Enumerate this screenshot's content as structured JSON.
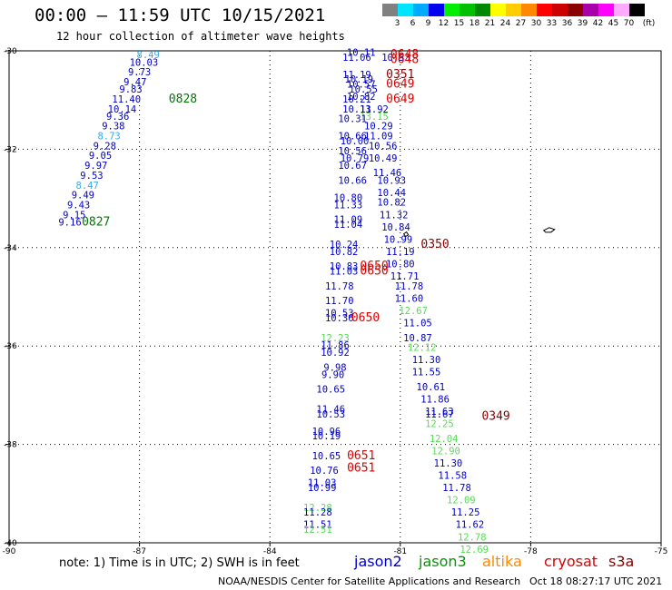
{
  "header": {
    "title": "00:00 – 11:59 UTC 10/15/2021",
    "subtitle": "12 hour collection of altimeter wave heights"
  },
  "colorbar": {
    "unit": "(ft)",
    "bins": [
      {
        "label": "3",
        "color": "#808080"
      },
      {
        "label": "6",
        "color": "#00e5ff"
      },
      {
        "label": "9",
        "color": "#00aaff"
      },
      {
        "label": "12",
        "color": "#0000ee"
      },
      {
        "label": "15",
        "color": "#00ee00"
      },
      {
        "label": "18",
        "color": "#00c000"
      },
      {
        "label": "21",
        "color": "#008800"
      },
      {
        "label": "24",
        "color": "#ffff00"
      },
      {
        "label": "27",
        "color": "#ffcc00"
      },
      {
        "label": "30",
        "color": "#ff8800"
      },
      {
        "label": "33",
        "color": "#ff0000"
      },
      {
        "label": "36",
        "color": "#cc0000"
      },
      {
        "label": "39",
        "color": "#8b0000"
      },
      {
        "label": "42",
        "color": "#aa00aa"
      },
      {
        "label": "45",
        "color": "#ff00ff"
      },
      {
        "label": "70",
        "color": "#ffaaff"
      },
      {
        "label": "",
        "color": "#000000"
      }
    ]
  },
  "chart_data": {
    "type": "scatter",
    "xlim": [
      -90,
      -75
    ],
    "ylim": [
      -40,
      -30
    ],
    "x_ticks": [
      -90,
      -87,
      -84,
      -81,
      -78,
      -75
    ],
    "y_ticks": [
      -30,
      -32,
      -34,
      -36,
      -38,
      -40
    ],
    "grid": false,
    "series": [
      {
        "name": "jason2",
        "color": "#0000cc"
      },
      {
        "name": "jason3",
        "color": "#009900"
      },
      {
        "name": "altika",
        "color": "#ff8800"
      },
      {
        "name": "cryosat",
        "color": "#dd0000"
      },
      {
        "name": "s3a",
        "color": "#880000"
      }
    ],
    "points": [
      {
        "lon": -86.8,
        "lat": -30.15,
        "v": "8.49",
        "c": "#33aaee"
      },
      {
        "lon": -86.9,
        "lat": -30.3,
        "v": "10.03",
        "c": "#0000cc"
      },
      {
        "lon": -87.0,
        "lat": -30.5,
        "v": "9.73",
        "c": "#0000cc"
      },
      {
        "lon": -87.1,
        "lat": -30.7,
        "v": "9.47",
        "c": "#0000cc"
      },
      {
        "lon": -87.2,
        "lat": -30.85,
        "v": "9.83",
        "c": "#0000cc"
      },
      {
        "lon": -87.3,
        "lat": -31.05,
        "v": "11.40",
        "c": "#0000cc"
      },
      {
        "lon": -87.4,
        "lat": -31.25,
        "v": "10.14",
        "c": "#0000cc"
      },
      {
        "lon": -87.5,
        "lat": -31.4,
        "v": "9.36",
        "c": "#0000cc"
      },
      {
        "lon": -87.6,
        "lat": -31.6,
        "v": "9.38",
        "c": "#0000cc"
      },
      {
        "lon": -87.7,
        "lat": -31.8,
        "v": "8.73",
        "c": "#33aaee"
      },
      {
        "lon": -87.8,
        "lat": -32.0,
        "v": "9.28",
        "c": "#0000cc"
      },
      {
        "lon": -87.9,
        "lat": -32.2,
        "v": "9.05",
        "c": "#0000cc"
      },
      {
        "lon": -88.0,
        "lat": -32.4,
        "v": "9.97",
        "c": "#0000cc"
      },
      {
        "lon": -88.1,
        "lat": -32.6,
        "v": "9.53",
        "c": "#0000cc"
      },
      {
        "lon": -88.2,
        "lat": -32.8,
        "v": "8.47",
        "c": "#33aaee"
      },
      {
        "lon": -88.3,
        "lat": -33.0,
        "v": "9.49",
        "c": "#0000cc"
      },
      {
        "lon": -88.4,
        "lat": -33.2,
        "v": "9.43",
        "c": "#0000cc"
      },
      {
        "lon": -88.5,
        "lat": -33.4,
        "v": "9.15",
        "c": "#0000cc"
      },
      {
        "lon": -88.6,
        "lat": -33.55,
        "v": "9.16",
        "c": "#0000cc"
      },
      {
        "lon": -81.9,
        "lat": -30.1,
        "v": "10.11",
        "c": "#0000cc"
      },
      {
        "lon": -82.0,
        "lat": -30.2,
        "v": "11.06",
        "c": "#0000cc"
      },
      {
        "lon": -81.1,
        "lat": -30.2,
        "v": "10.33",
        "c": "#0000cc"
      },
      {
        "lon": -82.0,
        "lat": -30.55,
        "v": "11.19",
        "c": "#0000cc"
      },
      {
        "lon": -81.95,
        "lat": -30.65,
        "v": "10.19",
        "c": "#0000cc"
      },
      {
        "lon": -81.9,
        "lat": -30.75,
        "v": "10.57",
        "c": "#0000cc"
      },
      {
        "lon": -81.85,
        "lat": -30.85,
        "v": "10.55",
        "c": "#0000cc"
      },
      {
        "lon": -81.9,
        "lat": -31.0,
        "v": "10.82",
        "c": "#0000cc"
      },
      {
        "lon": -82.0,
        "lat": -31.05,
        "v": "10.21",
        "c": "#0000cc"
      },
      {
        "lon": -82.0,
        "lat": -31.25,
        "v": "10.13",
        "c": "#0000cc"
      },
      {
        "lon": -81.6,
        "lat": -31.25,
        "v": "11.92",
        "c": "#0000cc"
      },
      {
        "lon": -81.6,
        "lat": -31.4,
        "v": "13.15",
        "c": "#55dd55"
      },
      {
        "lon": -82.1,
        "lat": -31.45,
        "v": "10.31",
        "c": "#0000cc"
      },
      {
        "lon": -81.5,
        "lat": -31.6,
        "v": "10.29",
        "c": "#0000cc"
      },
      {
        "lon": -82.1,
        "lat": -31.8,
        "v": "10.66",
        "c": "#0000cc"
      },
      {
        "lon": -81.5,
        "lat": -31.8,
        "v": "11.09",
        "c": "#0000cc"
      },
      {
        "lon": -82.05,
        "lat": -31.9,
        "v": "10.00",
        "c": "#0000cc"
      },
      {
        "lon": -81.4,
        "lat": -32.0,
        "v": "10.56",
        "c": "#0000cc"
      },
      {
        "lon": -82.1,
        "lat": -32.1,
        "v": "10.56",
        "c": "#0000cc"
      },
      {
        "lon": -82.05,
        "lat": -32.25,
        "v": "10.79",
        "c": "#0000cc"
      },
      {
        "lon": -81.4,
        "lat": -32.25,
        "v": "10.49",
        "c": "#0000cc"
      },
      {
        "lon": -82.1,
        "lat": -32.4,
        "v": "10.67",
        "c": "#0000cc"
      },
      {
        "lon": -81.3,
        "lat": -32.55,
        "v": "11.46",
        "c": "#0000cc"
      },
      {
        "lon": -82.1,
        "lat": -32.7,
        "v": "10.66",
        "c": "#0000cc"
      },
      {
        "lon": -81.2,
        "lat": -32.7,
        "v": "10.93",
        "c": "#0000cc"
      },
      {
        "lon": -81.2,
        "lat": -32.95,
        "v": "10.44",
        "c": "#0000cc"
      },
      {
        "lon": -82.2,
        "lat": -33.05,
        "v": "10.80",
        "c": "#0000cc"
      },
      {
        "lon": -81.2,
        "lat": -33.15,
        "v": "10.82",
        "c": "#0000cc"
      },
      {
        "lon": -82.2,
        "lat": -33.2,
        "v": "11.33",
        "c": "#0000cc"
      },
      {
        "lon": -81.15,
        "lat": -33.4,
        "v": "11.32",
        "c": "#0000cc"
      },
      {
        "lon": -82.2,
        "lat": -33.5,
        "v": "11.09",
        "c": "#0000cc"
      },
      {
        "lon": -82.2,
        "lat": -33.6,
        "v": "11.04",
        "c": "#0000cc"
      },
      {
        "lon": -81.1,
        "lat": -33.65,
        "v": "10.84",
        "c": "#0000cc"
      },
      {
        "lon": -81.05,
        "lat": -33.9,
        "v": "10.99",
        "c": "#0000cc"
      },
      {
        "lon": -82.3,
        "lat": -34.0,
        "v": "10.24",
        "c": "#0000cc"
      },
      {
        "lon": -81.0,
        "lat": -34.15,
        "v": "11.19",
        "c": "#0000cc"
      },
      {
        "lon": -82.3,
        "lat": -34.15,
        "v": "10.82",
        "c": "#0000cc"
      },
      {
        "lon": -81.0,
        "lat": -34.4,
        "v": "10.80",
        "c": "#0000cc"
      },
      {
        "lon": -82.3,
        "lat": -34.45,
        "v": "10.83",
        "c": "#0000cc"
      },
      {
        "lon": -82.3,
        "lat": -34.55,
        "v": "11.03",
        "c": "#0000cc"
      },
      {
        "lon": -80.9,
        "lat": -34.65,
        "v": "11.71",
        "c": "#0000cc"
      },
      {
        "lon": -82.4,
        "lat": -34.85,
        "v": "11.78",
        "c": "#0000cc"
      },
      {
        "lon": -80.8,
        "lat": -34.85,
        "v": "11.78",
        "c": "#0000cc"
      },
      {
        "lon": -80.8,
        "lat": -35.1,
        "v": "11.60",
        "c": "#0000cc"
      },
      {
        "lon": -82.4,
        "lat": -35.15,
        "v": "11.70",
        "c": "#0000cc"
      },
      {
        "lon": -80.7,
        "lat": -35.35,
        "v": "12.67",
        "c": "#55dd55"
      },
      {
        "lon": -82.4,
        "lat": -35.4,
        "v": "10.53",
        "c": "#0000cc"
      },
      {
        "lon": -82.4,
        "lat": -35.5,
        "v": "10.36",
        "c": "#0000cc"
      },
      {
        "lon": -80.6,
        "lat": -35.6,
        "v": "11.05",
        "c": "#0000cc"
      },
      {
        "lon": -82.5,
        "lat": -35.9,
        "v": "12.23",
        "c": "#55dd55"
      },
      {
        "lon": -80.6,
        "lat": -35.9,
        "v": "10.87",
        "c": "#0000cc"
      },
      {
        "lon": -82.5,
        "lat": -36.05,
        "v": "11.86",
        "c": "#0000cc"
      },
      {
        "lon": -80.5,
        "lat": -36.1,
        "v": "12.12",
        "c": "#55dd55"
      },
      {
        "lon": -82.5,
        "lat": -36.2,
        "v": "10.92",
        "c": "#0000cc"
      },
      {
        "lon": -80.4,
        "lat": -36.35,
        "v": "11.30",
        "c": "#0000cc"
      },
      {
        "lon": -82.5,
        "lat": -36.5,
        "v": "9.98",
        "c": "#0000cc"
      },
      {
        "lon": -80.4,
        "lat": -36.6,
        "v": "11.55",
        "c": "#0000cc"
      },
      {
        "lon": -82.55,
        "lat": -36.65,
        "v": "9.90",
        "c": "#0000cc"
      },
      {
        "lon": -80.3,
        "lat": -36.9,
        "v": "10.61",
        "c": "#0000cc"
      },
      {
        "lon": -82.6,
        "lat": -36.95,
        "v": "10.65",
        "c": "#0000cc"
      },
      {
        "lon": -80.2,
        "lat": -37.15,
        "v": "11.86",
        "c": "#0000cc"
      },
      {
        "lon": -82.6,
        "lat": -37.35,
        "v": "11.46",
        "c": "#0000cc"
      },
      {
        "lon": -80.1,
        "lat": -37.4,
        "v": "11.63",
        "c": "#0000cc"
      },
      {
        "lon": -82.6,
        "lat": -37.45,
        "v": "10.53",
        "c": "#0000cc"
      },
      {
        "lon": -80.1,
        "lat": -37.45,
        "v": "11.67",
        "c": "#0000cc"
      },
      {
        "lon": -80.1,
        "lat": -37.65,
        "v": "12.25",
        "c": "#55dd55"
      },
      {
        "lon": -82.7,
        "lat": -37.8,
        "v": "10.96",
        "c": "#0000cc"
      },
      {
        "lon": -82.7,
        "lat": -37.9,
        "v": "10.19",
        "c": "#0000cc"
      },
      {
        "lon": -80.0,
        "lat": -37.95,
        "v": "12.04",
        "c": "#55dd55"
      },
      {
        "lon": -79.95,
        "lat": -38.2,
        "v": "12.90",
        "c": "#55dd55"
      },
      {
        "lon": -82.7,
        "lat": -38.3,
        "v": "10.65",
        "c": "#0000cc"
      },
      {
        "lon": -79.9,
        "lat": -38.45,
        "v": "11.30",
        "c": "#0000cc"
      },
      {
        "lon": -82.75,
        "lat": -38.6,
        "v": "10.76",
        "c": "#0000cc"
      },
      {
        "lon": -79.8,
        "lat": -38.7,
        "v": "11.58",
        "c": "#0000cc"
      },
      {
        "lon": -82.8,
        "lat": -38.85,
        "v": "11.03",
        "c": "#0000cc"
      },
      {
        "lon": -79.7,
        "lat": -38.95,
        "v": "11.78",
        "c": "#0000cc"
      },
      {
        "lon": -82.8,
        "lat": -38.95,
        "v": "10.99",
        "c": "#0000cc"
      },
      {
        "lon": -79.6,
        "lat": -39.2,
        "v": "12.09",
        "c": "#55dd55"
      },
      {
        "lon": -82.9,
        "lat": -39.35,
        "v": "12.28",
        "c": "#55dd55"
      },
      {
        "lon": -79.5,
        "lat": -39.45,
        "v": "11.25",
        "c": "#0000cc"
      },
      {
        "lon": -82.9,
        "lat": -39.45,
        "v": "11.28",
        "c": "#0000cc"
      },
      {
        "lon": -79.4,
        "lat": -39.7,
        "v": "11.62",
        "c": "#0000cc"
      },
      {
        "lon": -82.9,
        "lat": -39.7,
        "v": "11.51",
        "c": "#0000cc"
      },
      {
        "lon": -82.9,
        "lat": -39.8,
        "v": "12.51",
        "c": "#55dd55"
      },
      {
        "lon": -79.35,
        "lat": -39.95,
        "v": "12.78",
        "c": "#55dd55"
      },
      {
        "lon": -79.3,
        "lat": -40.2,
        "v": "12.69",
        "c": "#55dd55"
      }
    ],
    "time_labels": [
      {
        "lon": -86.0,
        "lat": -31.05,
        "v": "0828",
        "c": "#007700"
      },
      {
        "lon": -88.0,
        "lat": -33.55,
        "v": "0827",
        "c": "#007700"
      },
      {
        "lon": -80.9,
        "lat": -30.15,
        "v": "0648",
        "c": "#dd0000"
      },
      {
        "lon": -80.9,
        "lat": -30.25,
        "v": "0648",
        "c": "#dd0000"
      },
      {
        "lon": -81.0,
        "lat": -30.55,
        "v": "0351",
        "c": "#880000"
      },
      {
        "lon": -81.0,
        "lat": -30.75,
        "v": "0649",
        "c": "#dd0000"
      },
      {
        "lon": -81.0,
        "lat": -31.05,
        "v": "0649",
        "c": "#dd0000"
      },
      {
        "lon": -80.2,
        "lat": -34.0,
        "v": "0350",
        "c": "#880000"
      },
      {
        "lon": -81.6,
        "lat": -34.45,
        "v": "0650",
        "c": "#dd0000"
      },
      {
        "lon": -81.6,
        "lat": -34.55,
        "v": "0650",
        "c": "#dd0000"
      },
      {
        "lon": -81.8,
        "lat": -35.5,
        "v": "0650",
        "c": "#dd0000"
      },
      {
        "lon": -78.8,
        "lat": -37.5,
        "v": "0349",
        "c": "#880000"
      },
      {
        "lon": -81.9,
        "lat": -38.3,
        "v": "0651",
        "c": "#dd0000"
      },
      {
        "lon": -81.9,
        "lat": -38.55,
        "v": "0651",
        "c": "#dd0000"
      }
    ]
  },
  "footer": {
    "note": "note:  1) Time is in UTC;  2) SWH is in feet",
    "satellites": [
      {
        "name": "jason2",
        "color": "#0000cc"
      },
      {
        "name": "jason3",
        "color": "#009900"
      },
      {
        "name": "altika",
        "color": "#ff8800"
      },
      {
        "name": "cryosat",
        "color": "#dd0000"
      },
      {
        "name": "s3a",
        "color": "#880000"
      }
    ],
    "credit": "NOAA/NESDIS Center for Satellite Applications and Research",
    "timestamp": "Oct 18 08:27:17 UTC 2021"
  }
}
